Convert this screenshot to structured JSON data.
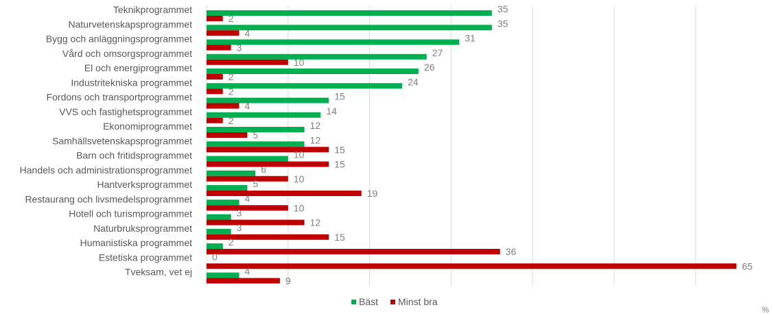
{
  "chart_data": {
    "type": "bar",
    "orientation": "horizontal",
    "title": "",
    "xlabel": "%",
    "ylabel": "",
    "xlim": [
      0,
      65
    ],
    "grid": true,
    "legend_position": "bottom",
    "categories": [
      "Teknikprogrammet",
      "Naturvetenskapsprogrammet",
      "Bygg och anläggningsprogrammet",
      "Vård och omsorgsprogrammet",
      "El och energiprogrammet",
      "Industritekniska programmet",
      "Fordons och transportprogrammet",
      "VVS och fastighetsprogrammet",
      "Ekonomiprogrammet",
      "Samhällsvetenskapsprogrammet",
      "Barn och fritidsprogrammet",
      "Handels och administrationsprogrammet",
      "Hantverksprogrammet",
      "Restaurang och livsmedelsprogrammet",
      "Hotell och turismprogrammet",
      "Naturbruksprogrammet",
      "Humanistiska programmet",
      "Estetiska programmet",
      "Tveksam, vet ej"
    ],
    "series": [
      {
        "name": "Bäst",
        "color": "#00b050",
        "values": [
          35,
          35,
          31,
          27,
          26,
          24,
          15,
          14,
          12,
          12,
          10,
          6,
          5,
          4,
          3,
          3,
          2,
          0,
          4
        ]
      },
      {
        "name": "Minst bra",
        "color": "#c00000",
        "values": [
          2,
          4,
          3,
          10,
          2,
          2,
          4,
          2,
          5,
          15,
          15,
          10,
          19,
          10,
          12,
          15,
          36,
          65,
          9
        ]
      }
    ],
    "gridline_color": "#d9d9d9"
  }
}
